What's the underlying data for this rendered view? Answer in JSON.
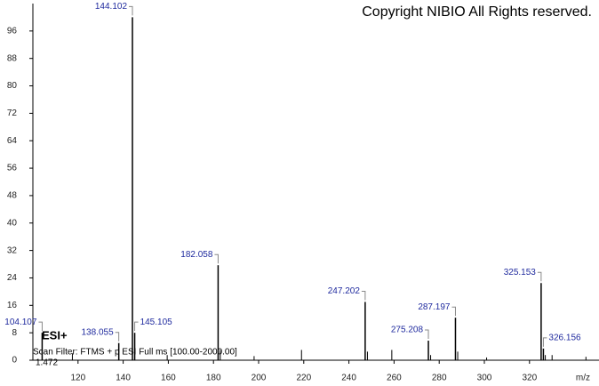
{
  "chart_data": {
    "type": "spectrum",
    "annotation": "Copyright NIBIO All Rights reserved.",
    "ionization": "ESI+",
    "scan_filter": "Scan Filter: FTMS + p ESI Full ms [100.00-2000.00]",
    "retention_time": "1.472",
    "xlabel": "m/z",
    "x": [
      104.107,
      138.055,
      144.102,
      145.105,
      182.058,
      247.202,
      275.208,
      287.197,
      325.153,
      326.156
    ],
    "values": [
      8,
      5,
      100,
      8,
      27.7,
      17,
      5.7,
      12.4,
      22.5,
      3.4
    ],
    "minor_x": [
      117.5,
      159.5,
      183.0,
      198.0,
      219.0,
      248.2,
      259.0,
      276.2,
      288.2,
      301.0,
      327.0,
      330.0,
      345.0
    ],
    "minor_values": [
      2,
      1.5,
      3,
      1.2,
      3,
      2.5,
      3,
      1.5,
      2.5,
      0.8,
      1.5,
      1.5,
      1
    ],
    "color": "#000000",
    "label_color": "#1f2a9e",
    "xlim": [
      100,
      350
    ],
    "xticks": [
      120,
      140,
      160,
      180,
      200,
      220,
      240,
      260,
      280,
      300,
      320
    ],
    "ylim": [
      0,
      104
    ],
    "yticks": [
      0,
      8,
      16,
      24,
      32,
      40,
      48,
      56,
      64,
      72,
      80,
      88,
      96
    ]
  }
}
